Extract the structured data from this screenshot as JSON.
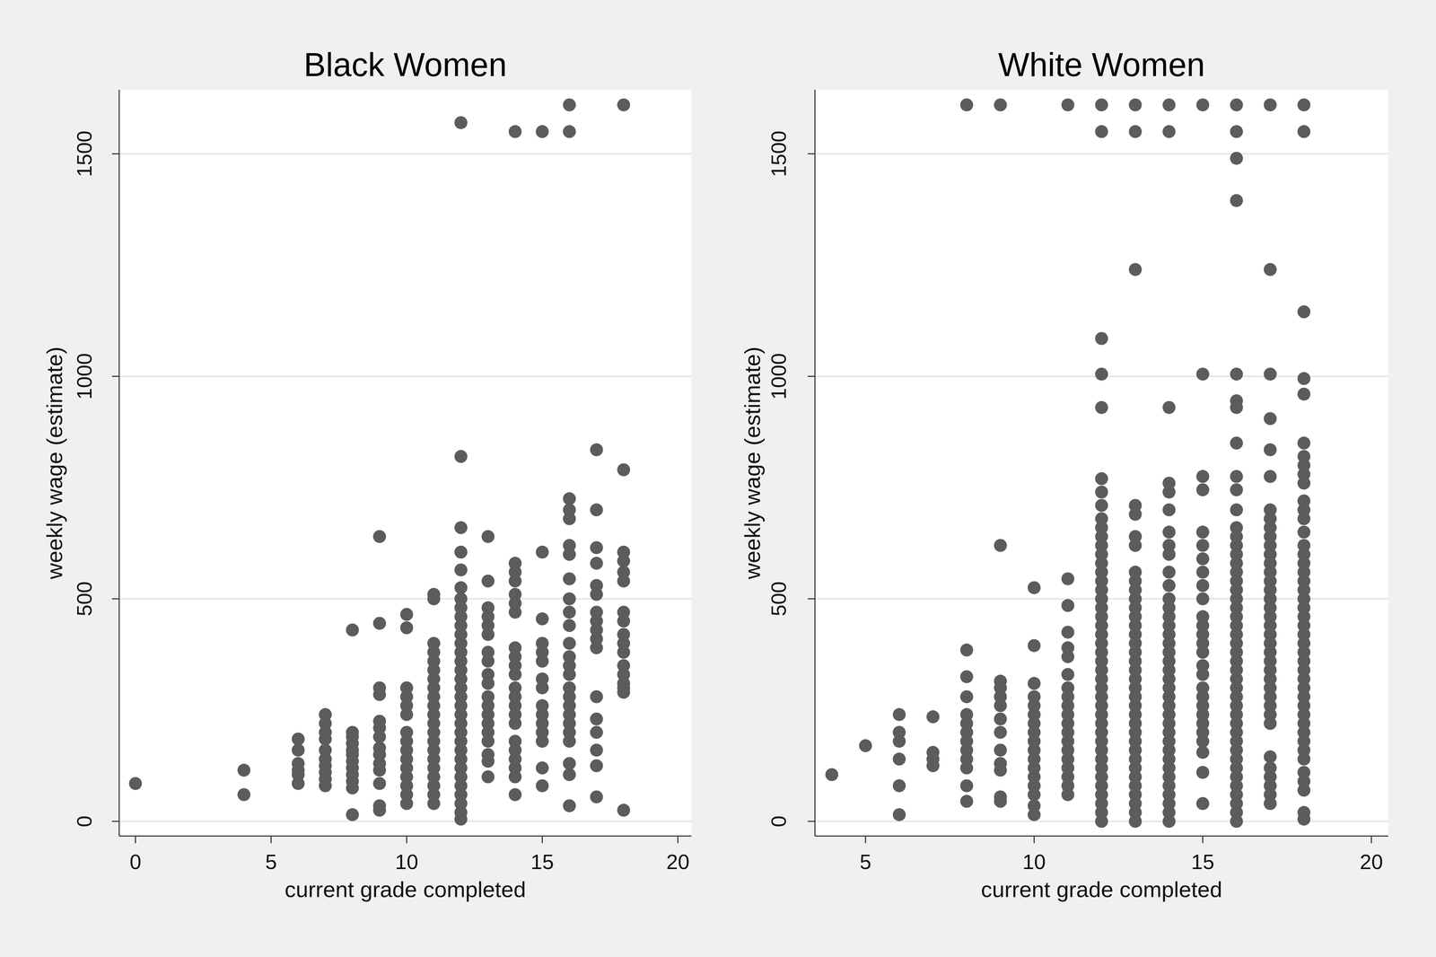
{
  "chart_data": [
    {
      "type": "scatter",
      "title": "Black Women",
      "x_label": "current grade completed",
      "y_label": "weekly wage (estimate)",
      "color": "#5c5c5c",
      "marker": "circle",
      "grid": true,
      "xlim": [
        -0.6,
        20.5
      ],
      "ylim": [
        -33,
        1644
      ],
      "xticks": [
        0,
        5,
        10,
        15,
        20
      ],
      "yticks": [
        0,
        500,
        1000,
        1500
      ],
      "x": [
        0,
        4,
        4,
        6,
        6,
        6,
        6,
        6,
        6,
        7,
        7,
        7,
        7,
        7,
        7,
        7,
        7,
        7,
        7,
        8,
        8,
        8,
        8,
        8,
        8,
        8,
        8,
        8,
        8,
        8,
        8,
        9,
        9,
        9,
        9,
        9,
        9,
        9,
        9,
        9,
        9,
        9,
        9,
        9,
        9,
        10,
        10,
        10,
        10,
        10,
        10,
        10,
        10,
        10,
        10,
        10,
        10,
        10,
        10,
        10,
        11,
        11,
        11,
        11,
        11,
        11,
        11,
        11,
        11,
        11,
        11,
        11,
        11,
        11,
        11,
        11,
        11,
        11,
        11,
        11,
        11,
        12,
        12,
        12,
        12,
        12,
        12,
        12,
        12,
        12,
        12,
        12,
        12,
        12,
        12,
        12,
        12,
        12,
        12,
        12,
        12,
        12,
        12,
        12,
        12,
        12,
        12,
        12,
        12,
        12,
        12,
        12,
        12,
        13,
        13,
        13,
        13,
        13,
        13,
        13,
        13,
        13,
        13,
        13,
        13,
        13,
        13,
        13,
        13,
        13,
        13,
        13,
        14,
        14,
        14,
        14,
        14,
        14,
        14,
        14,
        14,
        14,
        14,
        14,
        14,
        14,
        14,
        14,
        14,
        14,
        14,
        14,
        14,
        14,
        15,
        15,
        15,
        15,
        15,
        15,
        15,
        15,
        15,
        15,
        15,
        15,
        15,
        15,
        15,
        16,
        16,
        16,
        16,
        16,
        16,
        16,
        16,
        16,
        16,
        16,
        16,
        16,
        16,
        16,
        16,
        16,
        16,
        16,
        16,
        16,
        16,
        16,
        16,
        16,
        17,
        17,
        17,
        17,
        17,
        17,
        17,
        17,
        17,
        17,
        17,
        17,
        17,
        17,
        17,
        17,
        17,
        18,
        18,
        18,
        18,
        18,
        18,
        18,
        18,
        18,
        18,
        18,
        18,
        18,
        18,
        18,
        18,
        18
      ],
      "values": [
        85,
        115,
        60,
        185,
        160,
        130,
        115,
        105,
        85,
        240,
        220,
        200,
        185,
        160,
        140,
        125,
        110,
        95,
        80,
        430,
        200,
        190,
        175,
        160,
        150,
        135,
        120,
        105,
        90,
        75,
        15,
        640,
        445,
        300,
        285,
        225,
        210,
        190,
        165,
        150,
        130,
        115,
        85,
        35,
        25,
        465,
        435,
        300,
        280,
        260,
        240,
        200,
        180,
        160,
        140,
        120,
        100,
        80,
        60,
        40,
        510,
        500,
        400,
        380,
        360,
        340,
        320,
        300,
        280,
        260,
        240,
        220,
        200,
        180,
        160,
        140,
        120,
        100,
        80,
        60,
        40,
        1570,
        820,
        660,
        605,
        565,
        525,
        500,
        480,
        460,
        440,
        420,
        400,
        380,
        360,
        340,
        320,
        300,
        280,
        260,
        240,
        220,
        200,
        180,
        160,
        140,
        120,
        100,
        80,
        60,
        40,
        20,
        5,
        640,
        540,
        480,
        460,
        440,
        420,
        380,
        360,
        330,
        310,
        280,
        260,
        240,
        220,
        200,
        180,
        150,
        135,
        100,
        1550,
        580,
        560,
        540,
        510,
        490,
        470,
        390,
        370,
        350,
        330,
        300,
        280,
        260,
        240,
        220,
        180,
        160,
        140,
        120,
        100,
        60,
        1550,
        605,
        455,
        400,
        380,
        360,
        320,
        300,
        260,
        240,
        220,
        200,
        180,
        120,
        80,
        1610,
        1550,
        725,
        700,
        680,
        620,
        600,
        545,
        500,
        470,
        440,
        400,
        370,
        350,
        330,
        300,
        280,
        260,
        240,
        220,
        200,
        180,
        130,
        105,
        35,
        835,
        700,
        615,
        580,
        530,
        510,
        470,
        450,
        430,
        410,
        390,
        280,
        230,
        200,
        160,
        125,
        55,
        1610,
        790,
        605,
        585,
        560,
        540,
        470,
        450,
        420,
        400,
        380,
        350,
        330,
        310,
        300,
        290,
        25
      ]
    },
    {
      "type": "scatter",
      "title": "White Women",
      "x_label": "current grade completed",
      "y_label": "weekly wage (estimate)",
      "color": "#5c5c5c",
      "marker": "circle",
      "grid": true,
      "xlim": [
        3.5,
        20.5
      ],
      "ylim": [
        -33,
        1644
      ],
      "xticks": [
        5,
        10,
        15,
        20
      ],
      "yticks": [
        0,
        500,
        1000,
        1500
      ],
      "x": [
        4,
        5,
        6,
        6,
        6,
        6,
        6,
        6,
        7,
        7,
        7,
        7,
        8,
        8,
        8,
        8,
        8,
        8,
        8,
        8,
        8,
        8,
        8,
        8,
        8,
        9,
        9,
        9,
        9,
        9,
        9,
        9,
        9,
        9,
        9,
        9,
        9,
        9,
        10,
        10,
        10,
        10,
        10,
        10,
        10,
        10,
        10,
        10,
        10,
        10,
        10,
        10,
        10,
        10,
        10,
        11,
        11,
        11,
        11,
        11,
        11,
        11,
        11,
        11,
        11,
        11,
        11,
        11,
        11,
        11,
        11,
        11,
        11,
        11,
        11,
        12,
        12,
        12,
        12,
        12,
        12,
        12,
        12,
        12,
        12,
        12,
        12,
        12,
        12,
        12,
        12,
        12,
        12,
        12,
        12,
        12,
        12,
        12,
        12,
        12,
        12,
        12,
        12,
        12,
        12,
        12,
        12,
        12,
        12,
        12,
        12,
        12,
        12,
        12,
        12,
        12,
        12,
        12,
        13,
        13,
        13,
        13,
        13,
        13,
        13,
        13,
        13,
        13,
        13,
        13,
        13,
        13,
        13,
        13,
        13,
        13,
        13,
        13,
        13,
        13,
        13,
        13,
        13,
        13,
        13,
        13,
        13,
        13,
        13,
        13,
        13,
        13,
        13,
        13,
        14,
        14,
        14,
        14,
        14,
        14,
        14,
        14,
        14,
        14,
        14,
        14,
        14,
        14,
        14,
        14,
        14,
        14,
        14,
        14,
        14,
        14,
        14,
        14,
        14,
        14,
        14,
        14,
        14,
        14,
        14,
        14,
        14,
        14,
        14,
        14,
        14,
        15,
        15,
        15,
        15,
        15,
        15,
        15,
        15,
        15,
        15,
        15,
        15,
        15,
        15,
        15,
        15,
        15,
        15,
        15,
        15,
        15,
        15,
        15,
        15,
        15,
        15,
        15,
        16,
        16,
        16,
        16,
        16,
        16,
        16,
        16,
        16,
        16,
        16,
        16,
        16,
        16,
        16,
        16,
        16,
        16,
        16,
        16,
        16,
        16,
        16,
        16,
        16,
        16,
        16,
        16,
        16,
        16,
        16,
        16,
        16,
        16,
        16,
        16,
        16,
        16,
        16,
        16,
        16,
        16,
        16,
        16,
        16,
        17,
        17,
        17,
        17,
        17,
        17,
        17,
        17,
        17,
        17,
        17,
        17,
        17,
        17,
        17,
        17,
        17,
        17,
        17,
        17,
        17,
        17,
        17,
        17,
        17,
        17,
        17,
        17,
        17,
        17,
        17,
        17,
        17,
        17,
        17,
        17,
        17,
        18,
        18,
        18,
        18,
        18,
        18,
        18,
        18,
        18,
        18,
        18,
        18,
        18,
        18,
        18,
        18,
        18,
        18,
        18,
        18,
        18,
        18,
        18,
        18,
        18,
        18,
        18,
        18,
        18,
        18,
        18,
        18,
        18,
        18,
        18,
        18,
        18,
        18,
        18,
        18,
        18,
        18,
        18,
        18
      ],
      "values": [
        105,
        170,
        240,
        200,
        180,
        140,
        80,
        15,
        235,
        155,
        140,
        125,
        1610,
        385,
        325,
        280,
        240,
        220,
        200,
        180,
        160,
        140,
        120,
        80,
        45,
        1610,
        620,
        315,
        300,
        280,
        260,
        230,
        200,
        160,
        130,
        115,
        55,
        45,
        525,
        395,
        310,
        280,
        260,
        240,
        220,
        200,
        180,
        160,
        140,
        120,
        100,
        80,
        60,
        35,
        15,
        1610,
        545,
        485,
        425,
        390,
        370,
        330,
        300,
        280,
        260,
        240,
        220,
        200,
        180,
        160,
        140,
        120,
        100,
        80,
        60,
        1610,
        1550,
        1085,
        1005,
        930,
        770,
        740,
        710,
        680,
        660,
        640,
        620,
        600,
        580,
        560,
        540,
        520,
        500,
        480,
        460,
        440,
        420,
        400,
        380,
        360,
        340,
        320,
        300,
        280,
        260,
        240,
        220,
        200,
        180,
        160,
        140,
        120,
        100,
        80,
        60,
        40,
        20,
        0,
        1610,
        1550,
        1240,
        710,
        690,
        640,
        620,
        560,
        540,
        520,
        500,
        480,
        460,
        440,
        420,
        400,
        380,
        360,
        340,
        320,
        300,
        280,
        260,
        240,
        220,
        200,
        180,
        160,
        140,
        120,
        100,
        80,
        60,
        40,
        20,
        0,
        1610,
        1550,
        930,
        760,
        740,
        700,
        650,
        620,
        600,
        560,
        530,
        500,
        480,
        460,
        440,
        420,
        400,
        380,
        360,
        340,
        320,
        300,
        280,
        260,
        240,
        220,
        200,
        180,
        160,
        140,
        120,
        100,
        80,
        60,
        40,
        20,
        0,
        1610,
        1005,
        775,
        745,
        650,
        620,
        590,
        560,
        530,
        500,
        460,
        440,
        420,
        400,
        380,
        350,
        330,
        300,
        280,
        260,
        240,
        220,
        200,
        180,
        155,
        110,
        40,
        1610,
        1550,
        1490,
        1395,
        1005,
        945,
        930,
        850,
        775,
        745,
        700,
        660,
        640,
        620,
        600,
        580,
        560,
        540,
        520,
        500,
        480,
        460,
        440,
        420,
        400,
        380,
        360,
        340,
        320,
        300,
        280,
        260,
        240,
        220,
        200,
        180,
        160,
        140,
        120,
        100,
        80,
        60,
        40,
        20,
        0,
        1610,
        1240,
        1005,
        905,
        835,
        775,
        700,
        680,
        660,
        640,
        620,
        600,
        580,
        560,
        540,
        520,
        500,
        480,
        460,
        440,
        420,
        400,
        380,
        360,
        340,
        320,
        300,
        280,
        260,
        240,
        220,
        145,
        120,
        100,
        80,
        60,
        40,
        1610,
        1550,
        1145,
        995,
        960,
        850,
        820,
        800,
        780,
        760,
        720,
        700,
        680,
        650,
        620,
        600,
        580,
        560,
        540,
        520,
        500,
        480,
        460,
        440,
        420,
        400,
        380,
        360,
        340,
        320,
        300,
        280,
        260,
        240,
        220,
        200,
        180,
        160,
        140,
        110,
        90,
        70,
        20,
        5
      ]
    }
  ]
}
